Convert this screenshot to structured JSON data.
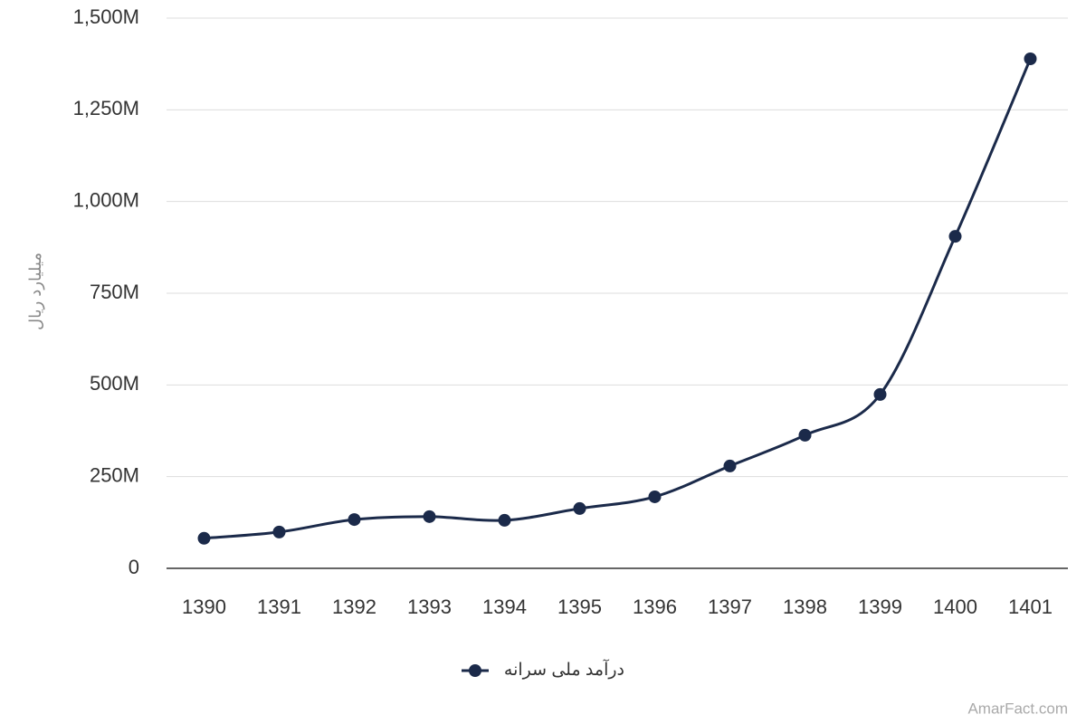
{
  "chart_data": {
    "type": "line",
    "y_label": "میلیارد ریال",
    "categories": [
      "1390",
      "1391",
      "1392",
      "1393",
      "1394",
      "1395",
      "1396",
      "1397",
      "1398",
      "1399",
      "1400",
      "1401"
    ],
    "series": [
      {
        "name": "درآمد ملی سرانه",
        "color": "#1b2a4a",
        "values": [
          82,
          99,
          133,
          141,
          131,
          163,
          195,
          279,
          363,
          474,
          905,
          1389
        ]
      }
    ],
    "ylim": [
      0,
      1500
    ],
    "yticks": [
      0,
      {
        "value": 250,
        "label": "250M"
      },
      {
        "value": 500,
        "label": "500M"
      },
      {
        "value": 750,
        "label": "750M"
      },
      {
        "value": 1000,
        "label": "1,000M"
      },
      {
        "value": 1250,
        "label": "1,250M"
      },
      {
        "value": 1500,
        "label": "1,500M"
      }
    ],
    "grid": true,
    "legend": "bottom",
    "watermark": "AmarFact.com"
  }
}
